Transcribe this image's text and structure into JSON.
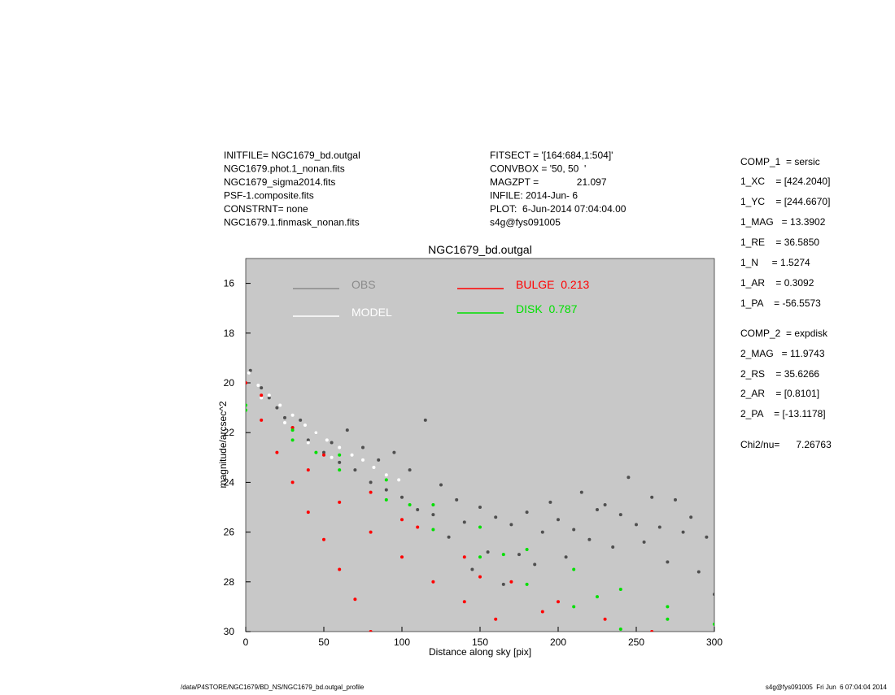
{
  "header": {
    "left": [
      "INITFILE= NGC1679_bd.outgal",
      "NGC1679.phot.1_nonan.fits",
      "NGC1679_sigma2014.fits",
      "PSF-1.composite.fits",
      "CONSTRNT= none",
      "NGC1679.1.finmask_nonan.fits"
    ],
    "middle": [
      "FITSECT = '[164:684,1:504]'",
      "CONVBOX = '50, 50  '",
      "MAGZPT =              21.097",
      "INFILE: 2014-Jun- 6",
      "PLOT:  6-Jun-2014 07:04:04.00",
      "s4g@fys091005"
    ]
  },
  "params": [
    "COMP_1  = sersic",
    "1_XC    = [424.2040]",
    "1_YC    = [244.6670]",
    "1_MAG   = 13.3902",
    "1_RE    = 36.5850",
    "1_N     = 1.5274",
    "1_AR    = 0.3092",
    "1_PA    = -56.5573",
    "COMP_2  = expdisk",
    "2_MAG   = 11.9743",
    "2_RS    = 35.6266",
    "2_AR    = [0.8101]",
    "2_PA    = [-13.1178]",
    "Chi2/nu=      7.26763"
  ],
  "footer": {
    "left": "/data/P4STORE/NGC1679/BD_NS/NGC1679_bd.outgal_profile",
    "right": "s4g@fys091005  Fri Jun  6 07:04:04 2014"
  },
  "chart_data": {
    "type": "scatter",
    "title": "NGC1679_bd.outgal",
    "x_label": "Distance along sky [pix]",
    "y_label": "magnitude/arcsec^2",
    "xlim": [
      0,
      300
    ],
    "xticks": [
      0,
      50,
      100,
      150,
      200,
      250,
      300
    ],
    "ylim": [
      15,
      30
    ],
    "yticks": [
      16,
      18,
      20,
      22,
      24,
      26,
      28,
      30
    ],
    "y_inverted": true,
    "background": "#c8c8c8",
    "series": [
      {
        "name": "OBS",
        "color": "#4f4f4f",
        "legend_color": "#8a8a8a",
        "x": [
          3,
          10,
          15,
          20,
          25,
          30,
          35,
          40,
          45,
          50,
          55,
          60,
          65,
          70,
          75,
          80,
          85,
          90,
          95,
          100,
          105,
          110,
          115,
          120,
          125,
          130,
          135,
          140,
          145,
          150,
          155,
          160,
          165,
          170,
          175,
          180,
          185,
          190,
          195,
          200,
          205,
          210,
          215,
          220,
          225,
          230,
          235,
          240,
          245,
          250,
          255,
          260,
          265,
          270,
          275,
          280,
          285,
          290,
          295,
          300
        ],
        "values": [
          19.5,
          20.2,
          20.6,
          21,
          21.4,
          21.8,
          21.5,
          22.3,
          22,
          22.8,
          22.4,
          23.2,
          21.9,
          23.5,
          22.6,
          24,
          23.1,
          24.3,
          22.8,
          24.6,
          23.5,
          25.1,
          21.5,
          25.3,
          24.1,
          26.2,
          24.7,
          25.6,
          27.5,
          25,
          26.8,
          25.4,
          28.1,
          25.7,
          26.9,
          25.2,
          27.3,
          26,
          24.8,
          25.5,
          27,
          25.9,
          24.4,
          26.3,
          25.1,
          24.9,
          26.6,
          25.3,
          23.8,
          25.7,
          26.4,
          24.6,
          25.8,
          27.2,
          24.7,
          26,
          25.4,
          27.6,
          26.2,
          28.5
        ]
      },
      {
        "name": "MODEL",
        "color": "#ffffff",
        "legend_color": "#ffffff",
        "x": [
          2,
          8,
          15,
          22,
          30,
          38,
          45,
          52,
          60,
          68,
          75,
          82,
          90,
          98,
          10,
          25,
          40,
          55
        ],
        "values": [
          19.6,
          20.1,
          20.5,
          20.9,
          21.3,
          21.7,
          22,
          22.3,
          22.6,
          22.9,
          23.1,
          23.4,
          23.7,
          23.9,
          20.6,
          21.6,
          22.4,
          23
        ]
      },
      {
        "name": "BULGE  0.213",
        "color": "#ff0000",
        "legend_color": "#ff0000",
        "x": [
          0,
          10,
          20,
          30,
          40,
          50,
          60,
          70,
          80,
          10,
          30,
          50,
          80,
          110,
          140,
          170,
          200,
          230,
          260,
          40,
          60,
          80,
          100,
          120,
          140,
          160,
          100,
          150,
          190
        ],
        "values": [
          20,
          21.5,
          22.8,
          24,
          25.2,
          26.3,
          27.5,
          28.7,
          30,
          20.5,
          21.8,
          22.9,
          24.4,
          25.8,
          27,
          28,
          28.8,
          29.5,
          30,
          23.5,
          24.8,
          26,
          27,
          28,
          28.8,
          29.5,
          25.5,
          27.8,
          29.2
        ]
      },
      {
        "name": "DISK  0.787",
        "color": "#00e000",
        "legend_color": "#00e000",
        "x": [
          0,
          30,
          60,
          90,
          120,
          150,
          180,
          210,
          240,
          270,
          300,
          0,
          30,
          60,
          90,
          120,
          150,
          180,
          210,
          240,
          45,
          105,
          165,
          225,
          270
        ],
        "values": [
          20.9,
          21.9,
          22.9,
          23.9,
          24.9,
          25.8,
          26.7,
          27.5,
          28.3,
          29,
          29.7,
          21.1,
          22.3,
          23.5,
          24.7,
          25.9,
          27,
          28.1,
          29,
          29.9,
          22.8,
          24.9,
          26.9,
          28.6,
          29.5
        ]
      }
    ]
  }
}
